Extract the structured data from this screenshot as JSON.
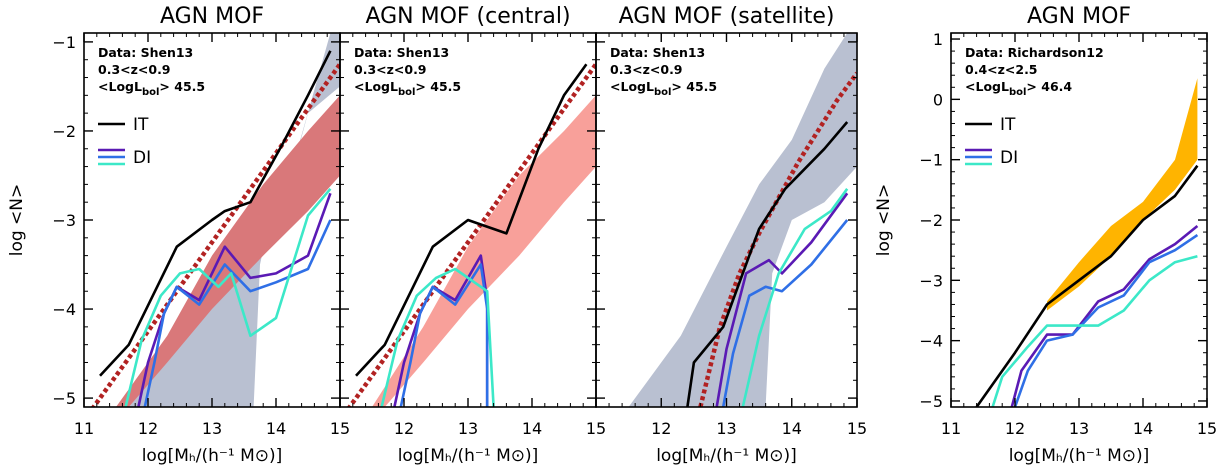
{
  "chart_data": [
    {
      "type": "line",
      "title": "AGN MOF",
      "xlabel": "log[Mₕ/(h⁻¹ M⊙)]",
      "ylabel": "log <N>",
      "xlim": [
        11,
        15
      ],
      "ylim": [
        -5.1,
        -0.9
      ],
      "xticks": [
        "11",
        "12",
        "13",
        "14",
        "15"
      ],
      "yticks": [
        "−5",
        "−4",
        "−3",
        "−2",
        "−1"
      ],
      "annotations": [
        "Data: Shen13",
        "0.3<z<0.9",
        "<LogL",
        "bol",
        "> 45.5"
      ],
      "legend": [
        "IT",
        "DI"
      ],
      "bands": [
        {
          "color": "#b9c0d1",
          "upper": [
            [
              11.7,
              -5.1
            ],
            [
              12.5,
              -4.4
            ],
            [
              13.2,
              -3.6
            ],
            [
              13.8,
              -3.0
            ],
            [
              14.3,
              -2.3
            ],
            [
              14.85,
              -0.9
            ],
            [
              15,
              -0.9
            ]
          ],
          "lower": [
            [
              15,
              -1.5
            ],
            [
              14.5,
              -1.8
            ],
            [
              14.2,
              -2.6
            ],
            [
              13.9,
              -3.0
            ],
            [
              13.75,
              -3.5
            ],
            [
              13.65,
              -5.1
            ]
          ]
        },
        {
          "color": "#d9787a",
          "upper": [
            [
              11.5,
              -5.1
            ],
            [
              12.3,
              -4.3
            ],
            [
              13.0,
              -3.4
            ],
            [
              13.8,
              -2.6
            ],
            [
              14.5,
              -2.0
            ],
            [
              15,
              -1.6
            ]
          ],
          "lower": [
            [
              15,
              -2.5
            ],
            [
              14.5,
              -2.9
            ],
            [
              13.8,
              -3.4
            ],
            [
              13.0,
              -4.0
            ],
            [
              12.3,
              -4.6
            ],
            [
              11.7,
              -5.1
            ]
          ]
        }
      ],
      "series": [
        {
          "color": "#b22222",
          "style": "dotted",
          "x": [
            11.0,
            11.5,
            12.0,
            12.5,
            13.0,
            13.5,
            14.0,
            14.5,
            15.0
          ],
          "y": [
            -5.25,
            -4.75,
            -4.25,
            -3.75,
            -3.25,
            -2.75,
            -2.25,
            -1.75,
            -1.25
          ]
        },
        {
          "color": "#000000",
          "x": [
            11.25,
            11.7,
            12.45,
            13.0,
            13.2,
            13.6,
            14.1,
            14.5,
            14.85
          ],
          "y": [
            -4.75,
            -4.4,
            -3.3,
            -3.0,
            -2.9,
            -2.8,
            -2.15,
            -1.6,
            -1.1
          ]
        },
        {
          "color": "#5a1ab4",
          "x": [
            11.85,
            12.0,
            12.25,
            12.45,
            12.8,
            13.2,
            13.6,
            14.0,
            14.5,
            14.85
          ],
          "y": [
            -5.1,
            -4.6,
            -4.05,
            -3.75,
            -3.9,
            -3.3,
            -3.65,
            -3.6,
            -3.4,
            -2.7
          ]
        },
        {
          "color": "#2f6fe6",
          "x": [
            11.95,
            12.1,
            12.25,
            12.45,
            12.8,
            13.2,
            13.6,
            14.0,
            14.5,
            14.85
          ],
          "y": [
            -5.1,
            -4.6,
            -4.05,
            -3.75,
            -3.95,
            -3.5,
            -3.8,
            -3.7,
            -3.55,
            -3.0
          ]
        },
        {
          "color": "#3ce8c8",
          "x": [
            11.65,
            11.9,
            12.2,
            12.5,
            12.8,
            13.1,
            13.3,
            13.6,
            14.0,
            14.5,
            14.85
          ],
          "y": [
            -5.1,
            -4.35,
            -3.85,
            -3.6,
            -3.55,
            -3.75,
            -3.6,
            -4.3,
            -4.1,
            -2.95,
            -2.65
          ]
        }
      ]
    },
    {
      "type": "line",
      "title": "AGN MOF (central)",
      "xlabel": "log[Mₕ/(h⁻¹ M⊙)]",
      "xlim": [
        11,
        15
      ],
      "ylim": [
        -5.1,
        -0.9
      ],
      "xticks": [
        "12",
        "13",
        "14",
        "15"
      ],
      "annotations": [
        "Data: Shen13",
        "0.3<z<0.9",
        "<LogL",
        "bol",
        "> 45.5"
      ],
      "bands": [
        {
          "color": "#f8a09a",
          "upper": [
            [
              11.5,
              -5.1
            ],
            [
              12.3,
              -4.2
            ],
            [
              13.0,
              -3.3
            ],
            [
              13.8,
              -2.5
            ],
            [
              14.5,
              -2.0
            ],
            [
              15,
              -1.6
            ]
          ],
          "lower": [
            [
              15,
              -2.4
            ],
            [
              14.5,
              -2.8
            ],
            [
              13.8,
              -3.4
            ],
            [
              13.0,
              -4.0
            ],
            [
              12.3,
              -4.6
            ],
            [
              11.7,
              -5.1
            ]
          ]
        }
      ],
      "series": [
        {
          "color": "#b22222",
          "style": "dotted",
          "x": [
            11.0,
            11.5,
            12.0,
            12.5,
            13.0,
            13.5,
            14.0,
            14.5,
            15.0
          ],
          "y": [
            -5.25,
            -4.75,
            -4.25,
            -3.75,
            -3.25,
            -2.75,
            -2.25,
            -1.75,
            -1.25
          ]
        },
        {
          "color": "#000000",
          "x": [
            11.25,
            11.7,
            12.45,
            13.0,
            13.2,
            13.6,
            14.1,
            14.5,
            14.85
          ],
          "y": [
            -4.75,
            -4.4,
            -3.3,
            -3.0,
            -3.05,
            -3.15,
            -2.2,
            -1.6,
            -1.25
          ]
        },
        {
          "color": "#5a1ab4",
          "x": [
            11.85,
            12.0,
            12.25,
            12.45,
            12.8,
            13.2,
            13.3,
            13.3
          ],
          "y": [
            -5.1,
            -4.6,
            -4.05,
            -3.75,
            -3.9,
            -3.4,
            -3.9,
            -5.1
          ]
        },
        {
          "color": "#2f6fe6",
          "x": [
            11.95,
            12.1,
            12.25,
            12.45,
            12.8,
            13.2,
            13.3,
            13.3
          ],
          "y": [
            -5.1,
            -4.6,
            -4.05,
            -3.75,
            -3.95,
            -3.5,
            -4.0,
            -5.1
          ]
        },
        {
          "color": "#3ce8c8",
          "x": [
            11.65,
            11.9,
            12.2,
            12.5,
            12.8,
            13.1,
            13.3,
            13.4
          ],
          "y": [
            -5.1,
            -4.35,
            -3.85,
            -3.65,
            -3.55,
            -3.7,
            -3.8,
            -5.1
          ]
        }
      ]
    },
    {
      "type": "line",
      "title": "AGN MOF (satellite)",
      "xlabel": "log[Mₕ/(h⁻¹ M⊙)]",
      "xlim": [
        11,
        15
      ],
      "ylim": [
        -5.1,
        -0.9
      ],
      "xticks": [
        "12",
        "13",
        "14",
        "15"
      ],
      "annotations": [
        "Data: Shen13",
        "0.3<z<0.9",
        "<LogL",
        "bol",
        "> 45.5"
      ],
      "bands": [
        {
          "color": "#b9c0d1",
          "upper": [
            [
              11.5,
              -5.1
            ],
            [
              12.3,
              -4.3
            ],
            [
              13.0,
              -3.3
            ],
            [
              13.5,
              -2.6
            ],
            [
              14.0,
              -2.1
            ],
            [
              14.5,
              -1.3
            ],
            [
              14.85,
              -0.9
            ],
            [
              15,
              -0.9
            ]
          ],
          "lower": [
            [
              15,
              -2.4
            ],
            [
              14.5,
              -2.8
            ],
            [
              14.0,
              -3.0
            ],
            [
              13.7,
              -3.6
            ],
            [
              13.6,
              -5.1
            ]
          ]
        }
      ],
      "series": [
        {
          "color": "#b22222",
          "style": "dotted",
          "x": [
            12.6,
            12.9,
            13.2,
            13.5,
            13.8,
            14.1,
            14.4,
            14.7,
            15.0
          ],
          "y": [
            -5.1,
            -4.2,
            -3.6,
            -3.15,
            -2.75,
            -2.35,
            -2.0,
            -1.65,
            -1.35
          ]
        },
        {
          "color": "#000000",
          "x": [
            12.4,
            12.5,
            12.95,
            13.2,
            13.5,
            13.9,
            14.5,
            14.85
          ],
          "y": [
            -5.1,
            -4.6,
            -4.2,
            -3.7,
            -3.1,
            -2.65,
            -2.2,
            -1.9
          ]
        },
        {
          "color": "#5a1ab4",
          "x": [
            12.85,
            13.0,
            13.3,
            13.65,
            13.85,
            14.3,
            14.85
          ],
          "y": [
            -5.1,
            -4.45,
            -3.6,
            -3.45,
            -3.6,
            -3.25,
            -2.7
          ]
        },
        {
          "color": "#2f6fe6",
          "x": [
            12.95,
            13.1,
            13.35,
            13.6,
            13.85,
            14.3,
            14.85
          ],
          "y": [
            -5.1,
            -4.5,
            -3.85,
            -3.75,
            -3.8,
            -3.5,
            -3.0
          ]
        },
        {
          "color": "#3ce8c8",
          "x": [
            13.25,
            13.5,
            13.8,
            14.2,
            14.6,
            14.85
          ],
          "y": [
            -5.1,
            -4.3,
            -3.6,
            -3.1,
            -2.9,
            -2.65
          ]
        }
      ]
    },
    {
      "type": "line",
      "title": "AGN MOF",
      "xlabel": "log[Mₕ/(h⁻¹ M⊙)]",
      "ylabel": "log <N>",
      "xlim": [
        11,
        15
      ],
      "ylim": [
        -5.1,
        1.1
      ],
      "xticks": [
        "11",
        "12",
        "13",
        "14",
        "15"
      ],
      "yticks": [
        "−5",
        "−4",
        "−3",
        "−2",
        "−1",
        "0",
        "1"
      ],
      "annotations": [
        "Data: Richardson12",
        "0.4<z<2.5",
        "<LogL",
        "bol",
        "> 46.4"
      ],
      "legend": [
        "IT",
        "DI"
      ],
      "bands": [
        {
          "color": "#ffb400",
          "upper": [
            [
              12.5,
              -3.35
            ],
            [
              13.0,
              -2.7
            ],
            [
              13.5,
              -2.1
            ],
            [
              14.0,
              -1.7
            ],
            [
              14.5,
              -1.0
            ],
            [
              14.85,
              0.35
            ]
          ],
          "lower": [
            [
              14.85,
              -1.0
            ],
            [
              14.5,
              -1.5
            ],
            [
              14.0,
              -2.0
            ],
            [
              13.5,
              -2.6
            ],
            [
              13.0,
              -3.1
            ],
            [
              12.5,
              -3.5
            ]
          ]
        }
      ],
      "series": [
        {
          "color": "#000000",
          "x": [
            11.4,
            12.0,
            12.5,
            13.0,
            13.5,
            14.0,
            14.5,
            14.85
          ],
          "y": [
            -5.1,
            -4.2,
            -3.4,
            -3.0,
            -2.6,
            -2.0,
            -1.6,
            -1.1
          ]
        },
        {
          "color": "#5a1ab4",
          "x": [
            11.95,
            12.1,
            12.5,
            12.9,
            13.3,
            13.7,
            14.1,
            14.5,
            14.85
          ],
          "y": [
            -5.1,
            -4.5,
            -3.9,
            -3.9,
            -3.35,
            -3.15,
            -2.65,
            -2.4,
            -2.1
          ]
        },
        {
          "color": "#2f6fe6",
          "x": [
            12.0,
            12.2,
            12.5,
            12.9,
            13.3,
            13.7,
            14.1,
            14.5,
            14.85
          ],
          "y": [
            -5.1,
            -4.5,
            -4.0,
            -3.9,
            -3.45,
            -3.25,
            -2.7,
            -2.5,
            -2.25
          ]
        },
        {
          "color": "#3ce8c8",
          "x": [
            11.65,
            11.8,
            12.2,
            12.5,
            12.9,
            13.3,
            13.7,
            14.1,
            14.5,
            14.85
          ],
          "y": [
            -5.1,
            -4.6,
            -4.1,
            -3.75,
            -3.75,
            -3.75,
            -3.5,
            -3.0,
            -2.7,
            -2.6
          ]
        }
      ]
    }
  ]
}
